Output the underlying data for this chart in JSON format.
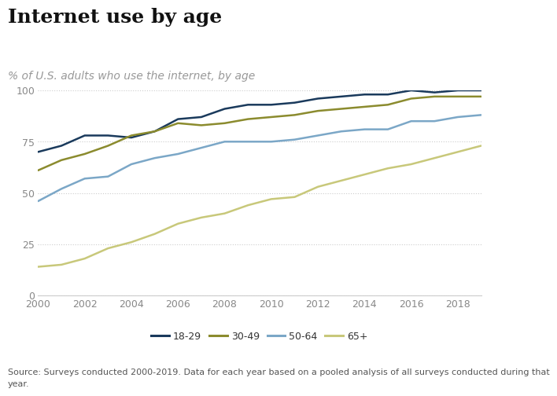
{
  "title": "Internet use by age",
  "subtitle": "% of U.S. adults who use the internet, by age",
  "source_line1": "Source: Surveys conducted 2000-2019. Data for each year based on a pooled analysis of all surveys conducted during that",
  "source_line2": "year.",
  "years": [
    2000,
    2001,
    2002,
    2003,
    2004,
    2005,
    2006,
    2007,
    2008,
    2009,
    2010,
    2011,
    2012,
    2013,
    2014,
    2015,
    2016,
    2017,
    2018,
    2019
  ],
  "age_18_29": [
    70,
    73,
    78,
    78,
    77,
    80,
    86,
    87,
    91,
    93,
    93,
    94,
    96,
    97,
    98,
    98,
    100,
    99,
    100,
    100
  ],
  "age_30_49": [
    61,
    66,
    69,
    73,
    78,
    80,
    84,
    83,
    84,
    86,
    87,
    88,
    90,
    91,
    92,
    93,
    96,
    97,
    97,
    97
  ],
  "age_50_64": [
    46,
    52,
    57,
    58,
    64,
    67,
    69,
    72,
    75,
    75,
    75,
    76,
    78,
    80,
    81,
    81,
    85,
    85,
    87,
    88
  ],
  "age_65p": [
    14,
    15,
    18,
    23,
    26,
    30,
    35,
    38,
    40,
    44,
    47,
    48,
    53,
    56,
    59,
    62,
    64,
    67,
    70,
    73
  ],
  "colors": {
    "18-29": "#1a3a5c",
    "30-49": "#8b8b2e",
    "50-64": "#7ba7c7",
    "65+": "#c8c87a"
  },
  "legend_labels": [
    "18-29",
    "30-49",
    "50-64",
    "65+"
  ],
  "xlim": [
    2000,
    2019
  ],
  "ylim": [
    0,
    100
  ],
  "yticks": [
    0,
    25,
    50,
    75,
    100
  ],
  "xticks": [
    2000,
    2002,
    2004,
    2006,
    2008,
    2010,
    2012,
    2014,
    2016,
    2018
  ],
  "grid_color": "#cccccc",
  "background_color": "#ffffff",
  "title_fontsize": 18,
  "subtitle_fontsize": 10,
  "source_fontsize": 8,
  "tick_fontsize": 9,
  "legend_fontsize": 9,
  "linewidth": 1.8
}
